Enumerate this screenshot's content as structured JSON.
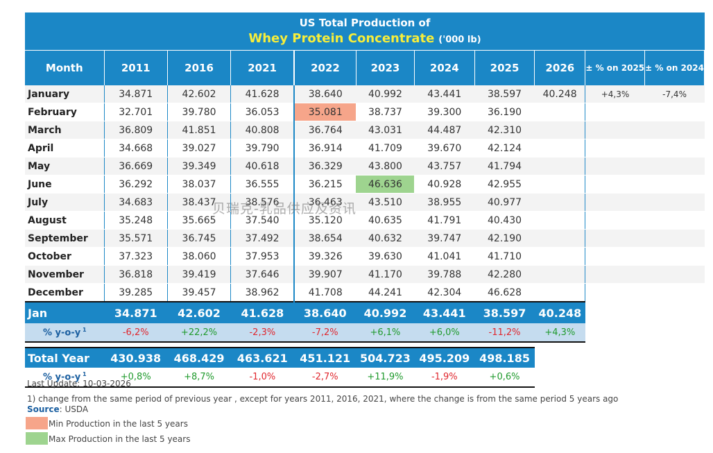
{
  "title": {
    "line1": "US Total Production of",
    "product": "Whey Protein Concentrate",
    "unit": "('000 lb)"
  },
  "columns": [
    "Month",
    "2011",
    "2016",
    "2021",
    "2022",
    "2023",
    "2024",
    "2025",
    "2026",
    "± % on 2025",
    "± % on 2024"
  ],
  "rows": [
    {
      "month": "January",
      "values": [
        "34.871",
        "42.602",
        "41.628",
        "38.640",
        "40.992",
        "43.441",
        "38.597",
        "40.248"
      ],
      "pct_2025": "+4,3%",
      "pct_2024": "-7,4%"
    },
    {
      "month": "February",
      "values": [
        "32.701",
        "39.780",
        "36.053",
        "35.081",
        "38.737",
        "39.300",
        "36.190",
        ""
      ],
      "pct_2025": "",
      "pct_2024": ""
    },
    {
      "month": "March",
      "values": [
        "36.809",
        "41.851",
        "40.808",
        "36.764",
        "43.031",
        "44.487",
        "42.310",
        ""
      ],
      "pct_2025": "",
      "pct_2024": ""
    },
    {
      "month": "April",
      "values": [
        "34.668",
        "39.027",
        "39.790",
        "36.914",
        "41.709",
        "39.670",
        "42.124",
        ""
      ],
      "pct_2025": "",
      "pct_2024": ""
    },
    {
      "month": "May",
      "values": [
        "36.669",
        "39.349",
        "40.618",
        "36.329",
        "43.800",
        "43.757",
        "41.794",
        ""
      ],
      "pct_2025": "",
      "pct_2024": ""
    },
    {
      "month": "June",
      "values": [
        "36.292",
        "38.037",
        "36.555",
        "36.215",
        "46.636",
        "40.928",
        "42.955",
        ""
      ],
      "pct_2025": "",
      "pct_2024": ""
    },
    {
      "month": "July",
      "values": [
        "34.683",
        "38.437",
        "38.576",
        "36.463",
        "43.510",
        "38.955",
        "40.977",
        ""
      ],
      "pct_2025": "",
      "pct_2024": ""
    },
    {
      "month": "August",
      "values": [
        "35.248",
        "35.665",
        "37.540",
        "35.120",
        "40.635",
        "41.791",
        "40.430",
        ""
      ],
      "pct_2025": "",
      "pct_2024": ""
    },
    {
      "month": "September",
      "values": [
        "35.571",
        "36.745",
        "37.492",
        "38.654",
        "40.632",
        "39.747",
        "42.190",
        ""
      ],
      "pct_2025": "",
      "pct_2024": ""
    },
    {
      "month": "October",
      "values": [
        "37.323",
        "38.060",
        "37.953",
        "39.326",
        "39.630",
        "41.041",
        "41.710",
        ""
      ],
      "pct_2025": "",
      "pct_2024": ""
    },
    {
      "month": "November",
      "values": [
        "36.818",
        "39.419",
        "37.646",
        "39.907",
        "41.170",
        "39.788",
        "42.280",
        ""
      ],
      "pct_2025": "",
      "pct_2024": ""
    },
    {
      "month": "December",
      "values": [
        "39.285",
        "39.457",
        "38.962",
        "41.708",
        "44.241",
        "42.304",
        "46.628",
        ""
      ],
      "pct_2025": "",
      "pct_2024": ""
    }
  ],
  "highlights": {
    "min": {
      "row": 1,
      "col": 3
    },
    "max": {
      "row": 5,
      "col": 4
    }
  },
  "jan_summary": {
    "label": "Jan",
    "values": [
      "34.871",
      "42.602",
      "41.628",
      "38.640",
      "40.992",
      "43.441",
      "38.597",
      "40.248"
    ],
    "yoy_label": "% y-o-y",
    "yoy": [
      "-6,2%",
      "+22,2%",
      "-2,3%",
      "-7,2%",
      "+6,1%",
      "+6,0%",
      "-11,2%",
      "+4,3%"
    ]
  },
  "total_year": {
    "label": "Total Year",
    "values": [
      "430.938",
      "468.429",
      "463.621",
      "451.121",
      "504.723",
      "495.209",
      "498.185"
    ],
    "yoy_label": "% y-o-y",
    "yoy": [
      "+0,8%",
      "+8,7%",
      "-1,0%",
      "-2,7%",
      "+11,9%",
      "-1,9%",
      "+0,6%"
    ]
  },
  "footer": {
    "last_update": "Last Update: 10-03-2026",
    "note": "1) change from the same period of previous year , except for years 2011, 2016, 2021, where the change is from the same period 5 years ago",
    "source_label": "Source",
    "source_value": ": USDA",
    "legend_min": "Min Production in the last 5 years",
    "legend_max": "Max Production in the last 5 years"
  },
  "colors": {
    "header": "#1b87c6",
    "title_accent": "#f7ee3a",
    "min": "#f6a58a",
    "max": "#9ed48f",
    "pos": "#1f9a2c",
    "neg": "#e0262d"
  },
  "watermark": "贝瑞克-乳品供应及资讯"
}
